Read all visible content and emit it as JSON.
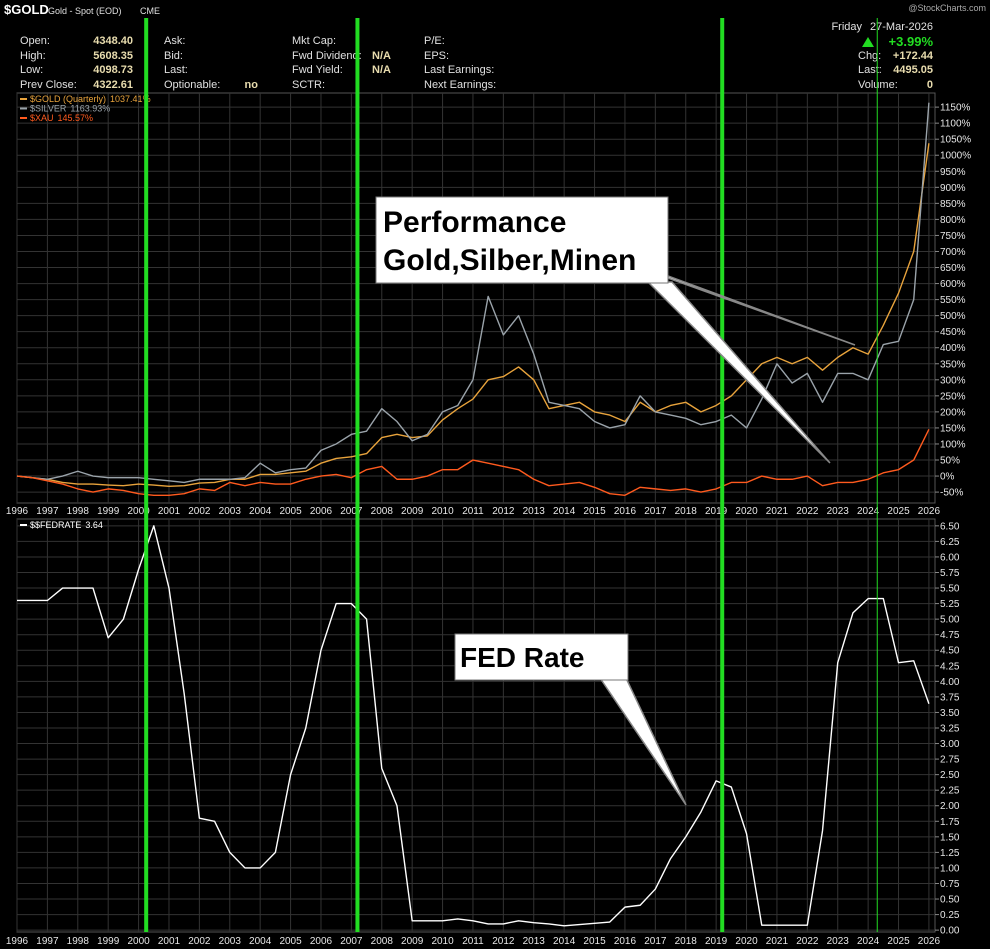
{
  "header": {
    "symbol": "$GOLD",
    "name": "Gold - Spot (EOD)",
    "exchange": "CME",
    "copyright": "@StockCharts.com",
    "day": "Friday",
    "date": "27-Mar-2026",
    "change_pct": "+3.99%",
    "columns": [
      [
        {
          "label": "Open:",
          "value": "4348.40"
        },
        {
          "label": "High:",
          "value": "5608.35"
        },
        {
          "label": "Low:",
          "value": "4098.73"
        },
        {
          "label": "Prev Close:",
          "value": "4322.61"
        }
      ],
      [
        {
          "label": "Ask:"
        },
        {
          "label": "Bid:"
        },
        {
          "label": "Last:"
        },
        {
          "label": "Optionable:",
          "value": "no"
        }
      ],
      [
        {
          "label": "Mkt Cap:"
        },
        {
          "label": "Fwd Dividend:",
          "value": "N/A"
        },
        {
          "label": "Fwd Yield:",
          "value": "N/A"
        },
        {
          "label": "SCTR:"
        }
      ],
      [
        {
          "label": "P/E:"
        },
        {
          "label": "EPS:"
        },
        {
          "label": "Last Earnings:"
        },
        {
          "label": "Next Earnings:"
        }
      ],
      [
        {
          "label": "Chg:",
          "value": "+172.44"
        },
        {
          "label": "Last:",
          "value": "4495.05"
        },
        {
          "label": "Volume:",
          "value": "0"
        }
      ]
    ]
  },
  "highlights": [
    {
      "x": 2000.25,
      "style": "thick"
    },
    {
      "x": 2007.2,
      "style": "thick"
    },
    {
      "x": 2019.2,
      "style": "thick"
    },
    {
      "x": 2024.3,
      "style": "thin"
    }
  ],
  "chart_data": [
    {
      "type": "line",
      "annotation_lines": [
        "Performance",
        "Gold,Silber,Minen"
      ],
      "x": [
        1996,
        1996.5,
        1997,
        1997.5,
        1998,
        1998.5,
        1999,
        1999.5,
        2000,
        2000.5,
        2001,
        2001.5,
        2002,
        2002.5,
        2003,
        2003.5,
        2004,
        2004.5,
        2005,
        2005.5,
        2006,
        2006.5,
        2007,
        2007.5,
        2008,
        2008.5,
        2009,
        2009.5,
        2010,
        2010.5,
        2011,
        2011.5,
        2012,
        2012.5,
        2013,
        2013.5,
        2014,
        2014.5,
        2015,
        2015.5,
        2016,
        2016.5,
        2017,
        2017.5,
        2018,
        2018.5,
        2019,
        2019.5,
        2020,
        2020.5,
        2021,
        2021.5,
        2022,
        2022.5,
        2023,
        2023.5,
        2024,
        2024.5,
        2025,
        2025.5,
        2026
      ],
      "series": [
        {
          "name": "$GOLD (Quarterly)",
          "legend_value": "1037.41%",
          "color": "#e8a33c",
          "values": [
            0,
            -5,
            -10,
            -20,
            -25,
            -25,
            -28,
            -30,
            -25,
            -28,
            -32,
            -30,
            -22,
            -20,
            -10,
            -10,
            5,
            5,
            10,
            15,
            40,
            55,
            60,
            70,
            120,
            130,
            120,
            125,
            175,
            210,
            240,
            300,
            310,
            340,
            300,
            210,
            220,
            230,
            200,
            190,
            170,
            230,
            200,
            220,
            230,
            200,
            220,
            250,
            300,
            350,
            370,
            350,
            370,
            330,
            370,
            400,
            380,
            470,
            570,
            700,
            1037.41
          ]
        },
        {
          "name": "$SILVER",
          "legend_value": "1163.93%",
          "color": "#9aa3aa",
          "values": [
            0,
            -5,
            -10,
            0,
            15,
            0,
            -5,
            -5,
            -5,
            -10,
            -15,
            -20,
            -10,
            -10,
            -10,
            -5,
            40,
            10,
            20,
            25,
            80,
            100,
            130,
            140,
            210,
            170,
            110,
            130,
            200,
            220,
            300,
            560,
            440,
            500,
            380,
            230,
            220,
            210,
            170,
            150,
            160,
            250,
            200,
            190,
            180,
            160,
            170,
            190,
            150,
            240,
            350,
            290,
            320,
            230,
            320,
            320,
            300,
            410,
            420,
            550,
            1163.93
          ]
        },
        {
          "name": "$XAU",
          "legend_value": "145.57%",
          "color": "#ff5a1e",
          "values": [
            0,
            -5,
            -15,
            -25,
            -40,
            -50,
            -40,
            -45,
            -55,
            -60,
            -60,
            -55,
            -40,
            -45,
            -20,
            -30,
            -20,
            -25,
            -25,
            -10,
            0,
            5,
            -5,
            20,
            30,
            -10,
            -10,
            0,
            20,
            20,
            50,
            40,
            30,
            20,
            -10,
            -30,
            -25,
            -20,
            -35,
            -55,
            -60,
            -35,
            -40,
            -45,
            -40,
            -50,
            -40,
            -20,
            -20,
            0,
            -10,
            -10,
            0,
            -30,
            -20,
            -20,
            -10,
            10,
            20,
            50,
            145.57
          ]
        }
      ],
      "xlim": [
        1996,
        2026.2
      ],
      "xticks": [
        1996,
        1997,
        1998,
        1999,
        2000,
        2001,
        2002,
        2003,
        2004,
        2005,
        2006,
        2007,
        2008,
        2009,
        2010,
        2011,
        2012,
        2013,
        2014,
        2015,
        2016,
        2017,
        2018,
        2019,
        2020,
        2021,
        2022,
        2023,
        2024,
        2025,
        2026
      ],
      "ylim": [
        -84,
        1194
      ],
      "yticks": [
        {
          "value": -50,
          "label": "-50%"
        },
        {
          "value": 0,
          "label": "0%"
        },
        {
          "value": 50,
          "label": "50%"
        },
        {
          "value": 100,
          "label": "100%"
        },
        {
          "value": 150,
          "label": "150%"
        },
        {
          "value": 200,
          "label": "200%"
        },
        {
          "value": 250,
          "label": "250%"
        },
        {
          "value": 300,
          "label": "300%"
        },
        {
          "value": 350,
          "label": "350%"
        },
        {
          "value": 400,
          "label": "400%"
        },
        {
          "value": 450,
          "label": "450%"
        },
        {
          "value": 500,
          "label": "500%"
        },
        {
          "value": 550,
          "label": "550%"
        },
        {
          "value": 600,
          "label": "600%"
        },
        {
          "value": 650,
          "label": "650%"
        },
        {
          "value": 700,
          "label": "700%"
        },
        {
          "value": 750,
          "label": "750%"
        },
        {
          "value": 800,
          "label": "800%"
        },
        {
          "value": 850,
          "label": "850%"
        },
        {
          "value": 900,
          "label": "900%"
        },
        {
          "value": 950,
          "label": "950%"
        },
        {
          "value": 1000,
          "label": "1000%"
        },
        {
          "value": 1050,
          "label": "1050%"
        },
        {
          "value": 1100,
          "label": "1100%"
        },
        {
          "value": 1150,
          "label": "1150%"
        }
      ],
      "grid": true
    },
    {
      "type": "line",
      "annotation_lines": [
        "FED Rate"
      ],
      "x": [
        1996,
        1996.5,
        1997,
        1997.5,
        1998,
        1998.5,
        1999,
        1999.5,
        2000,
        2000.5,
        2001,
        2001.5,
        2002,
        2002.5,
        2003,
        2003.5,
        2004,
        2004.5,
        2005,
        2005.5,
        2006,
        2006.5,
        2007,
        2007.5,
        2008,
        2008.5,
        2009,
        2009.5,
        2010,
        2010.5,
        2011,
        2011.5,
        2012,
        2012.5,
        2013,
        2013.5,
        2014,
        2014.5,
        2015,
        2015.5,
        2016,
        2016.5,
        2017,
        2017.5,
        2018,
        2018.5,
        2019,
        2019.5,
        2020,
        2020.5,
        2021,
        2021.5,
        2022,
        2022.5,
        2023,
        2023.5,
        2024,
        2024.5,
        2025,
        2025.5,
        2026
      ],
      "series": [
        {
          "name": "$$FEDRATE",
          "legend_value": "3.64",
          "color": "#ffffff",
          "values": [
            5.3,
            5.3,
            5.3,
            5.5,
            5.5,
            5.5,
            4.7,
            5.0,
            5.8,
            6.5,
            5.5,
            3.8,
            1.8,
            1.75,
            1.25,
            1.0,
            1.0,
            1.25,
            2.5,
            3.25,
            4.5,
            5.25,
            5.25,
            5.0,
            2.6,
            2.0,
            0.15,
            0.15,
            0.15,
            0.18,
            0.15,
            0.1,
            0.1,
            0.15,
            0.12,
            0.1,
            0.07,
            0.09,
            0.11,
            0.13,
            0.37,
            0.4,
            0.66,
            1.15,
            1.5,
            1.9,
            2.4,
            2.3,
            1.55,
            0.08,
            0.08,
            0.08,
            0.08,
            1.6,
            4.3,
            5.1,
            5.33,
            5.33,
            4.3,
            4.33,
            3.64
          ]
        }
      ],
      "xlim": [
        1996,
        2026.2
      ],
      "xticks": [
        1996,
        1997,
        1998,
        1999,
        2000,
        2001,
        2002,
        2003,
        2004,
        2005,
        2006,
        2007,
        2008,
        2009,
        2010,
        2011,
        2012,
        2013,
        2014,
        2015,
        2016,
        2017,
        2018,
        2019,
        2020,
        2021,
        2022,
        2023,
        2024,
        2025,
        2026
      ],
      "ylim": [
        -0.03,
        6.61
      ],
      "yticks": [
        {
          "value": 0,
          "label": "0.00"
        },
        {
          "value": 0.25,
          "label": "0.25"
        },
        {
          "value": 0.5,
          "label": "0.50"
        },
        {
          "value": 0.75,
          "label": "0.75"
        },
        {
          "value": 1,
          "label": "1.00"
        },
        {
          "value": 1.25,
          "label": "1.25"
        },
        {
          "value": 1.5,
          "label": "1.50"
        },
        {
          "value": 1.75,
          "label": "1.75"
        },
        {
          "value": 2,
          "label": "2.00"
        },
        {
          "value": 2.25,
          "label": "2.25"
        },
        {
          "value": 2.5,
          "label": "2.50"
        },
        {
          "value": 2.75,
          "label": "2.75"
        },
        {
          "value": 3,
          "label": "3.00"
        },
        {
          "value": 3.25,
          "label": "3.25"
        },
        {
          "value": 3.5,
          "label": "3.50"
        },
        {
          "value": 3.75,
          "label": "3.75"
        },
        {
          "value": 4,
          "label": "4.00"
        },
        {
          "value": 4.25,
          "label": "4.25"
        },
        {
          "value": 4.5,
          "label": "4.50"
        },
        {
          "value": 4.75,
          "label": "4.75"
        },
        {
          "value": 5,
          "label": "5.00"
        },
        {
          "value": 5.25,
          "label": "5.25"
        },
        {
          "value": 5.5,
          "label": "5.50"
        },
        {
          "value": 5.75,
          "label": "5.75"
        },
        {
          "value": 6,
          "label": "6.00"
        },
        {
          "value": 6.25,
          "label": "6.25"
        },
        {
          "value": 6.5,
          "label": "6.50"
        }
      ],
      "grid": true
    }
  ]
}
